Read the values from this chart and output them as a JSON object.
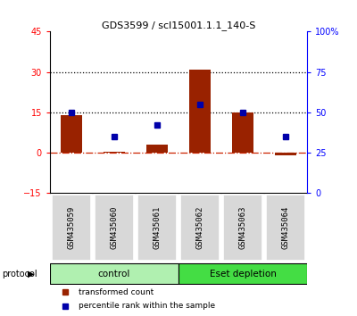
{
  "title": "GDS3599 / scl15001.1.1_140-S",
  "samples": [
    "GSM435059",
    "GSM435060",
    "GSM435061",
    "GSM435062",
    "GSM435063",
    "GSM435064"
  ],
  "red_bars": [
    14.0,
    0.3,
    3.0,
    31.0,
    15.0,
    -1.0
  ],
  "blue_dots": [
    50,
    35,
    42,
    55,
    50,
    35
  ],
  "left_ylim": [
    -15,
    45
  ],
  "left_yticks": [
    -15,
    0,
    15,
    30,
    45
  ],
  "right_ylim": [
    0,
    100
  ],
  "right_yticks": [
    0,
    25,
    50,
    75,
    100
  ],
  "right_yticklabels": [
    "0",
    "25",
    "50",
    "75",
    "100%"
  ],
  "hlines": [
    15,
    30
  ],
  "dashed_hline": 0,
  "groups": [
    {
      "label": "control",
      "color": "#b0f0b0",
      "start": 0,
      "end": 2
    },
    {
      "label": "Eset depletion",
      "color": "#44dd44",
      "start": 3,
      "end": 5
    }
  ],
  "protocol_label": "protocol",
  "legend_red": "transformed count",
  "legend_blue": "percentile rank within the sample",
  "bar_color": "#992200",
  "dot_color": "#0000AA",
  "bar_width": 0.5,
  "background_color": "#ffffff"
}
